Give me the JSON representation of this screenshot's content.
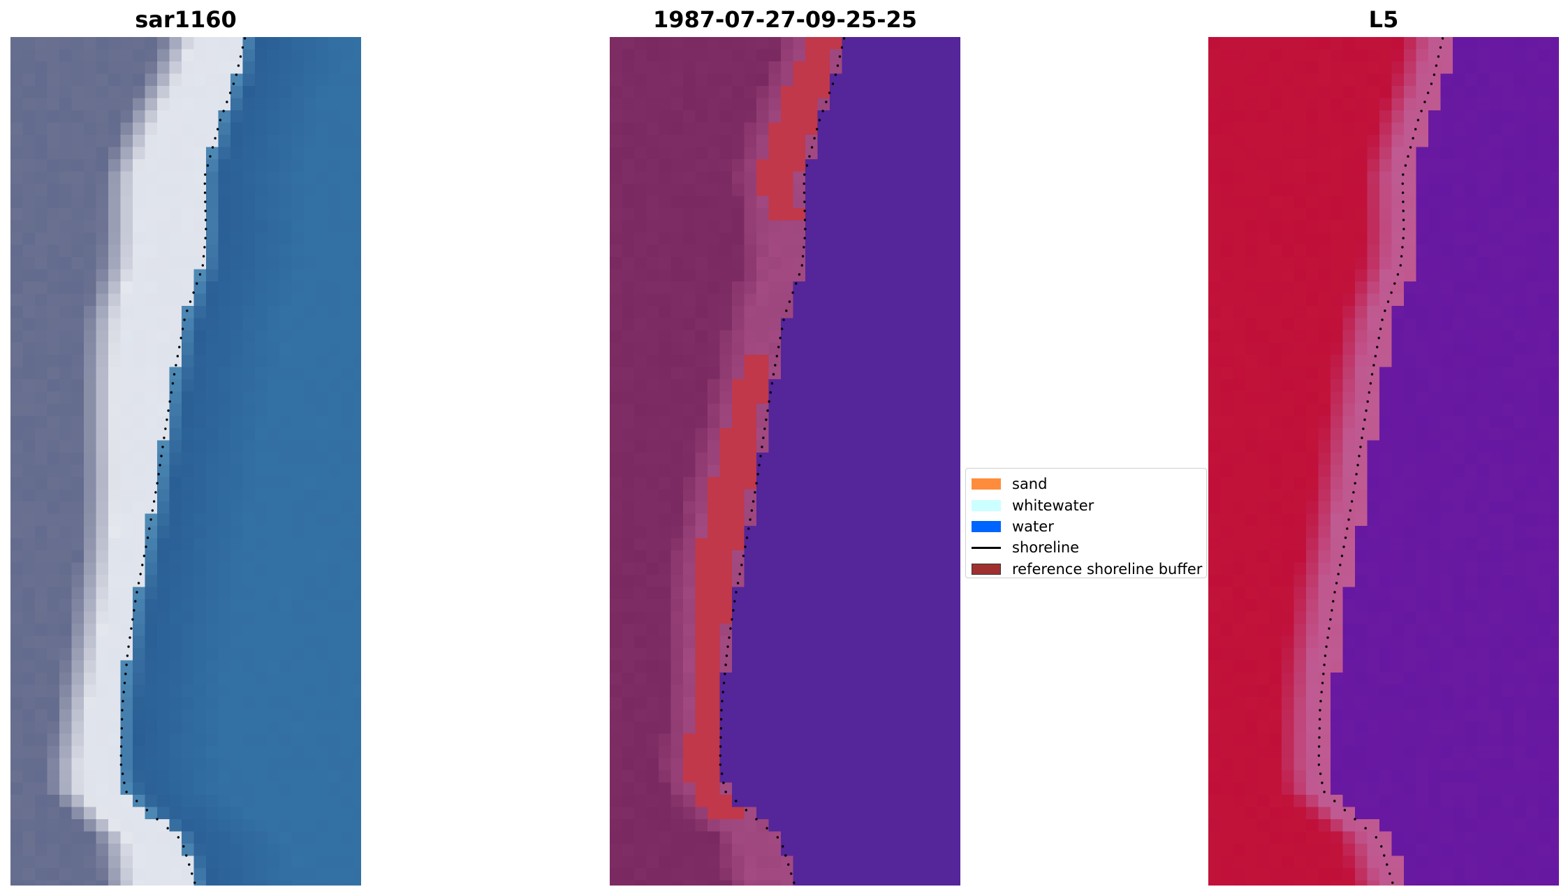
{
  "panels": [
    {
      "title": "sar1160",
      "style": "rgb"
    },
    {
      "title": "1987-07-27-09-25-25",
      "style": "classified"
    },
    {
      "title": "L5",
      "style": "ndwi"
    }
  ],
  "legend": {
    "placement": "center",
    "items": [
      {
        "label": "sand",
        "color": "#ff8c3b",
        "kind": "patch"
      },
      {
        "label": "whitewater",
        "color": "#ccffff",
        "kind": "patch"
      },
      {
        "label": "water",
        "color": "#0064ff",
        "kind": "patch"
      },
      {
        "label": "shoreline",
        "color": "#000000",
        "kind": "line"
      },
      {
        "label": "reference shoreline buffer",
        "color": "#a03030",
        "kind": "patch"
      }
    ]
  },
  "colors": {
    "rgb_land": "#6a7090",
    "rgb_beach": "#e8eaf0",
    "rgb_water": "#2a5f95",
    "class_land": "#7a2a60",
    "class_transition": "#a34a82",
    "class_buffer": "#c0384a",
    "class_water": "#55259a",
    "ndwi_land": "#c0103a",
    "ndwi_transition": "#c05890",
    "ndwi_water": "#6a1aa0"
  }
}
